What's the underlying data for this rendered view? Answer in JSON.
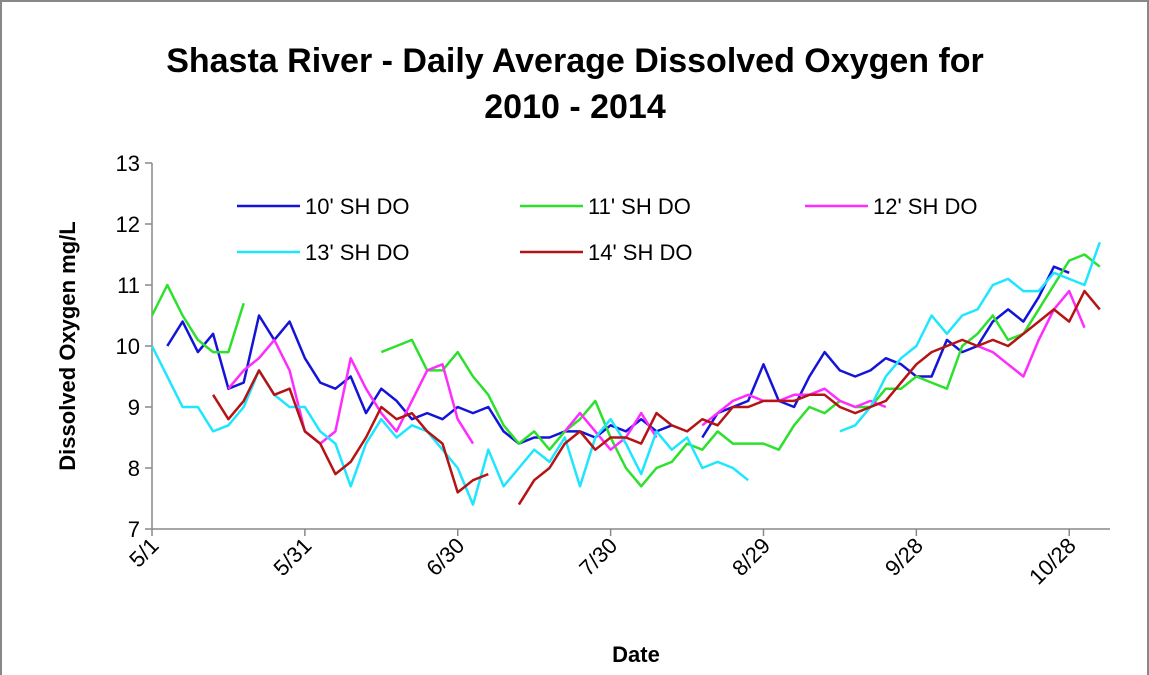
{
  "chart_data": {
    "type": "line",
    "title": "Shasta River - Daily Average Dissolved Oxygen for",
    "subtitle": "2010 - 2014",
    "x_label": "Date",
    "y_label": "Dissolved Oxygen mg/L",
    "x": [
      0,
      3,
      6,
      9,
      12,
      15,
      18,
      21,
      24,
      27,
      30,
      33,
      36,
      39,
      42,
      45,
      48,
      51,
      54,
      57,
      60,
      63,
      66,
      69,
      72,
      75,
      78,
      81,
      84,
      87,
      90,
      93,
      96,
      99,
      102,
      105,
      108,
      111,
      114,
      117,
      120,
      123,
      126,
      129,
      132,
      135,
      138,
      141,
      144,
      147,
      150,
      153,
      156,
      159,
      162,
      165,
      168,
      171,
      174,
      177,
      180,
      183,
      186
    ],
    "xlim": [
      0,
      188
    ],
    "xticks": [
      {
        "value": 0,
        "label": "5/1"
      },
      {
        "value": 30,
        "label": "5/31"
      },
      {
        "value": 60,
        "label": "6/30"
      },
      {
        "value": 90,
        "label": "7/30"
      },
      {
        "value": 120,
        "label": "8/29"
      },
      {
        "value": 150,
        "label": "9/28"
      },
      {
        "value": 180,
        "label": "10/28"
      }
    ],
    "ylim": [
      7,
      13
    ],
    "yticks": [
      7,
      8,
      9,
      10,
      11,
      12,
      13
    ],
    "grid": false,
    "series": [
      {
        "name": "10' SH DO",
        "color": "#1414d8",
        "values": [
          null,
          10.0,
          10.4,
          9.9,
          10.2,
          9.3,
          9.4,
          10.5,
          10.1,
          10.4,
          9.8,
          9.4,
          9.3,
          9.5,
          8.9,
          9.3,
          9.1,
          8.8,
          8.9,
          8.8,
          9.0,
          8.9,
          9.0,
          8.6,
          8.4,
          8.5,
          8.5,
          8.6,
          8.6,
          8.5,
          8.7,
          8.6,
          8.8,
          8.6,
          8.7,
          null,
          8.5,
          8.9,
          9.0,
          9.1,
          9.7,
          9.1,
          9.0,
          9.5,
          9.9,
          9.6,
          9.5,
          9.6,
          9.8,
          9.7,
          9.5,
          9.5,
          10.1,
          9.9,
          10.0,
          10.4,
          10.6,
          10.4,
          10.8,
          11.3,
          11.2,
          null,
          null
        ]
      },
      {
        "name": "11' SH DO",
        "color": "#2ee02e",
        "values": [
          10.5,
          11.0,
          10.5,
          10.1,
          9.9,
          9.9,
          10.7,
          null,
          null,
          null,
          null,
          null,
          null,
          null,
          null,
          9.9,
          10.0,
          10.1,
          9.6,
          9.6,
          9.9,
          9.5,
          9.2,
          8.7,
          8.4,
          8.6,
          8.3,
          8.6,
          8.8,
          9.1,
          8.5,
          8.0,
          7.7,
          8.0,
          8.1,
          8.4,
          8.3,
          8.6,
          8.4,
          8.4,
          8.4,
          8.3,
          8.7,
          9.0,
          8.9,
          9.1,
          9.0,
          9.0,
          9.3,
          9.3,
          9.5,
          9.4,
          9.3,
          10.0,
          10.2,
          10.5,
          10.1,
          10.2,
          10.6,
          11.0,
          11.4,
          11.5,
          11.3
        ]
      },
      {
        "name": "12' SH DO",
        "color": "#ff2cff",
        "values": [
          null,
          null,
          null,
          null,
          null,
          9.3,
          9.6,
          9.8,
          10.1,
          9.6,
          8.6,
          8.4,
          8.6,
          9.8,
          9.3,
          8.9,
          8.6,
          9.1,
          9.6,
          9.7,
          8.8,
          8.4,
          null,
          null,
          null,
          null,
          null,
          8.6,
          8.9,
          8.6,
          8.3,
          8.5,
          8.9,
          8.5,
          null,
          null,
          8.7,
          8.9,
          9.1,
          9.2,
          9.1,
          9.1,
          9.2,
          9.2,
          9.3,
          9.1,
          9.0,
          9.1,
          9.0,
          null,
          null,
          null,
          null,
          null,
          10.0,
          9.9,
          9.7,
          9.5,
          10.1,
          10.6,
          10.9,
          10.3,
          null
        ]
      },
      {
        "name": "13' SH DO",
        "color": "#1ee6ff",
        "values": [
          10.0,
          9.5,
          9.0,
          9.0,
          8.6,
          8.7,
          9.0,
          9.6,
          9.2,
          9.0,
          9.0,
          8.6,
          8.4,
          7.7,
          8.4,
          8.8,
          8.5,
          8.7,
          8.6,
          8.3,
          8.0,
          7.4,
          8.3,
          7.7,
          8.0,
          8.3,
          8.1,
          8.5,
          7.7,
          8.5,
          8.8,
          8.4,
          7.9,
          8.6,
          8.3,
          8.5,
          8.0,
          8.1,
          8.0,
          7.8,
          null,
          null,
          null,
          null,
          null,
          8.6,
          8.7,
          9.0,
          9.5,
          9.8,
          10.0,
          10.5,
          10.2,
          10.5,
          10.6,
          11.0,
          11.1,
          10.9,
          10.9,
          11.2,
          11.1,
          11.0,
          11.7
        ]
      },
      {
        "name": "14' SH DO",
        "color": "#b41414",
        "values": [
          null,
          null,
          null,
          null,
          9.2,
          8.8,
          9.1,
          9.6,
          9.2,
          9.3,
          8.6,
          8.4,
          7.9,
          8.1,
          8.5,
          9.0,
          8.8,
          8.9,
          8.6,
          8.4,
          7.6,
          7.8,
          7.9,
          null,
          7.4,
          7.8,
          8.0,
          8.4,
          8.6,
          8.3,
          8.5,
          8.5,
          8.4,
          8.9,
          8.7,
          8.6,
          8.8,
          8.7,
          9.0,
          9.0,
          9.1,
          9.1,
          9.1,
          9.2,
          9.2,
          9.0,
          8.9,
          9.0,
          9.1,
          9.4,
          9.7,
          9.9,
          10.0,
          10.1,
          10.0,
          10.1,
          10.0,
          10.2,
          10.4,
          10.6,
          10.4,
          10.9,
          10.6
        ]
      }
    ]
  }
}
